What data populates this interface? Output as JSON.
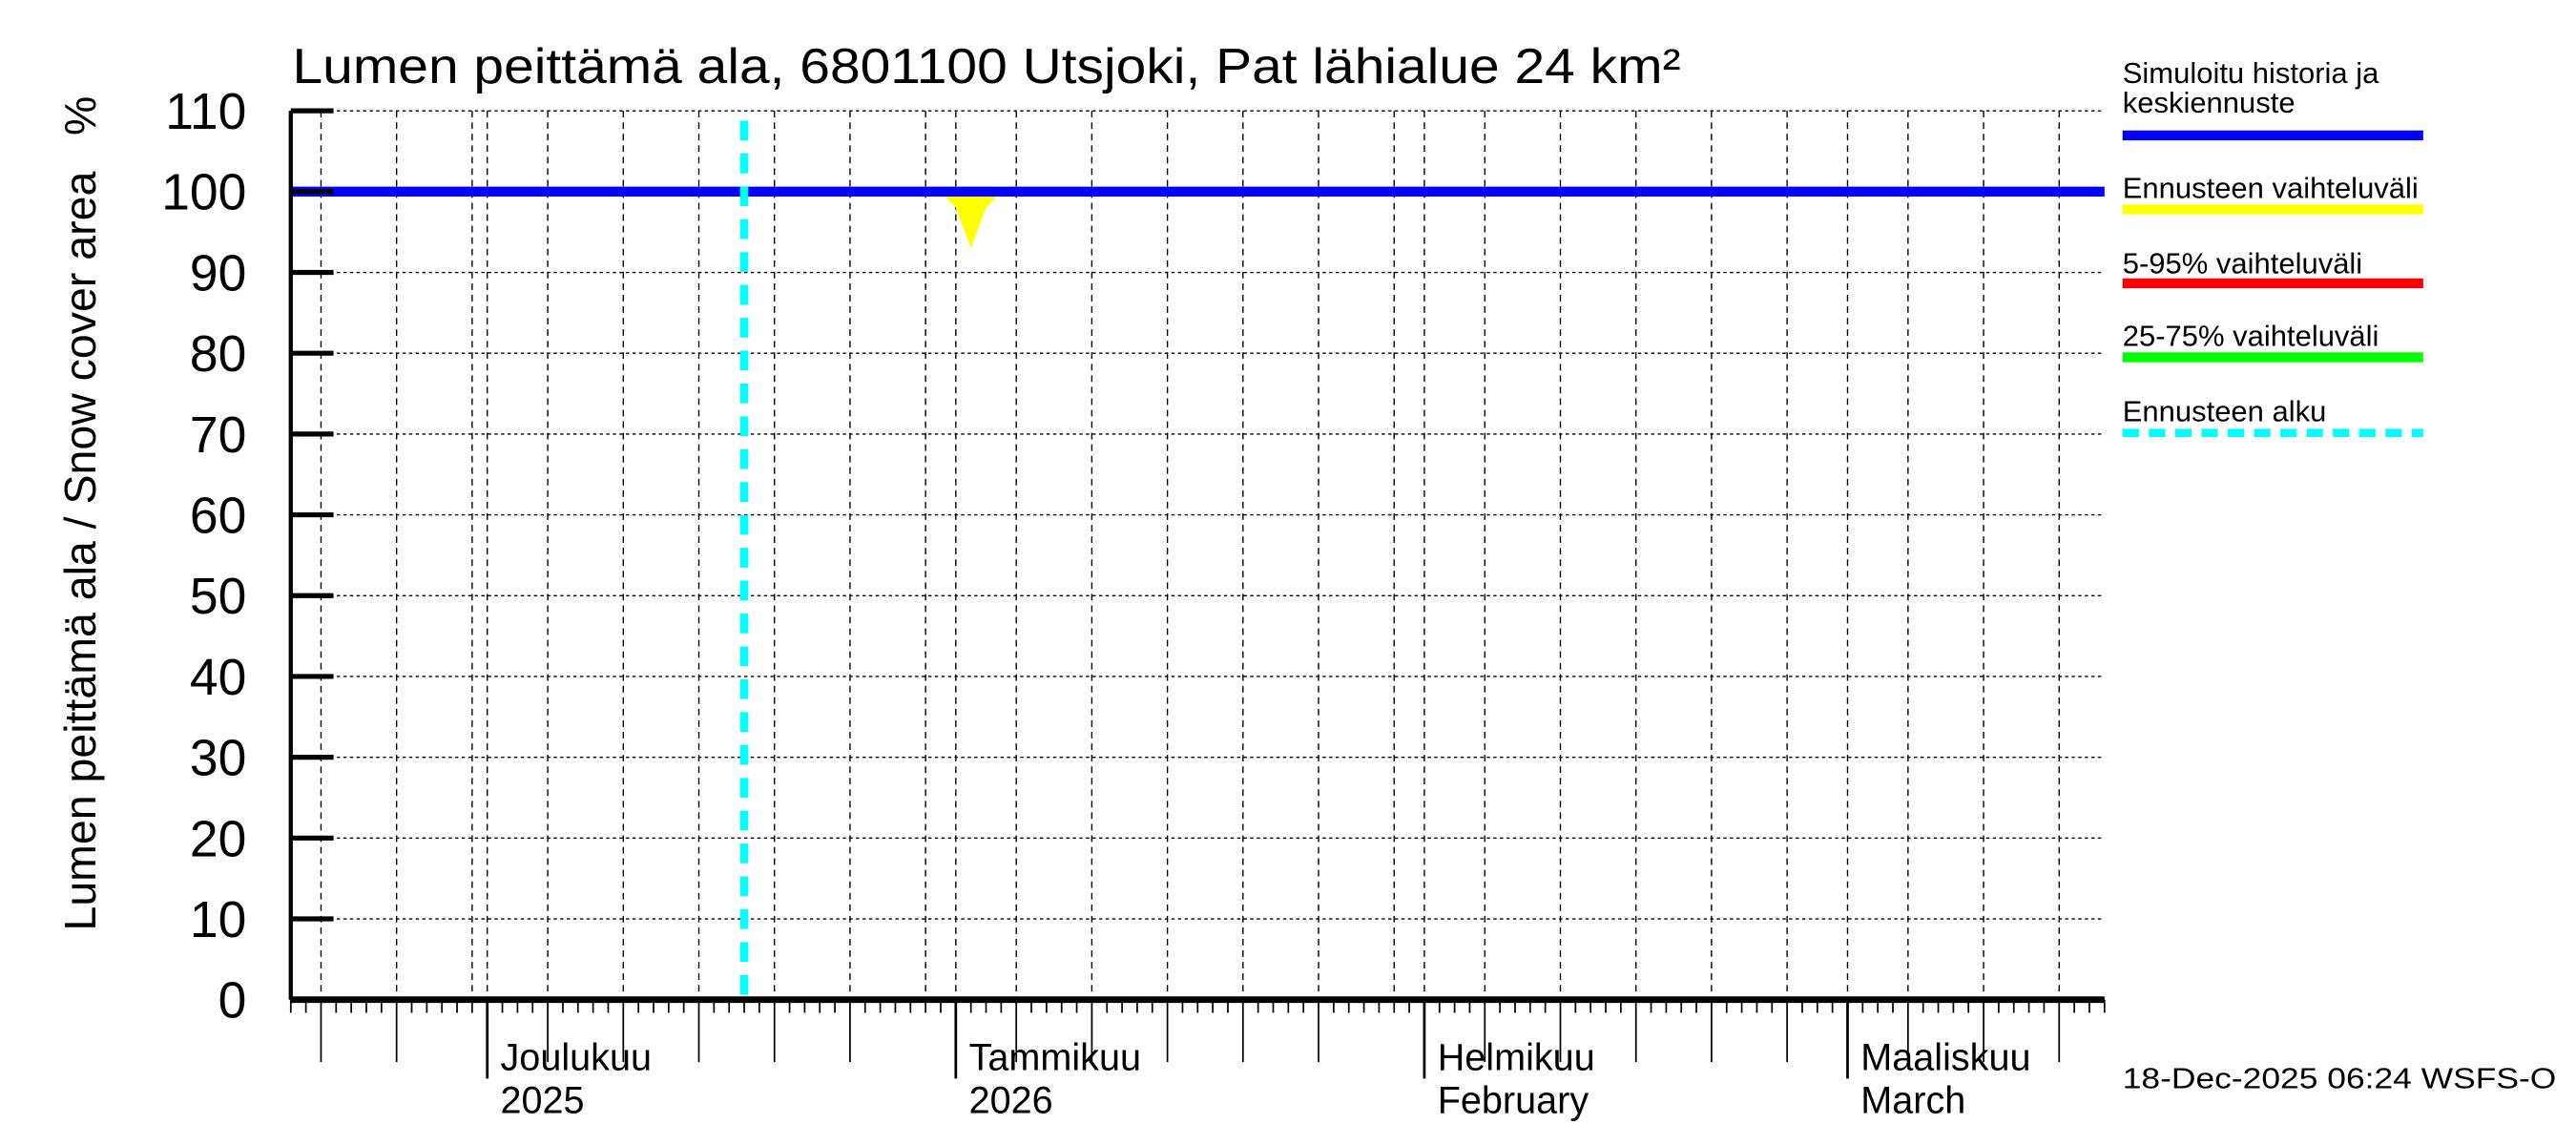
{
  "chart_data": {
    "type": "line",
    "title": "Lumen peittämä ala, 6801100 Utsjoki, Pat lähialue 24 km²",
    "ylabel": "Lumen peittämä ala / Snow cover area",
    "yunit": "%",
    "ylim": [
      0,
      110
    ],
    "yticks": [
      0,
      10,
      20,
      30,
      40,
      50,
      60,
      70,
      80,
      90,
      100,
      110
    ],
    "xlim": [
      "2025-11-18",
      "2026-03-18"
    ],
    "forecast_start": "2025-12-18",
    "grid": true,
    "month_labels": [
      {
        "date": "2025-12-01",
        "line1": "Joulukuu",
        "line2": "2025"
      },
      {
        "date": "2026-01-01",
        "line1": "Tammikuu",
        "line2": "2026"
      },
      {
        "date": "2026-02-01",
        "line1": "Helmikuu",
        "line2": "February"
      },
      {
        "date": "2026-03-01",
        "line1": "Maaliskuu",
        "line2": "March"
      }
    ],
    "series": [
      {
        "name": "Simuloitu historia ja keskiennuste",
        "color": "#0000ff",
        "points": [
          [
            "2025-11-18",
            100
          ],
          [
            "2026-03-18",
            100
          ]
        ]
      },
      {
        "name": "Ennusteen vaihteluväli",
        "color": "#ffff00",
        "type": "band_min",
        "points": [
          [
            "2025-12-24",
            100
          ],
          [
            "2025-12-25",
            99.5
          ],
          [
            "2025-12-26",
            100
          ],
          [
            "2025-12-31",
            100
          ],
          [
            "2026-01-01",
            98
          ],
          [
            "2026-01-02",
            93
          ],
          [
            "2026-01-03",
            98
          ],
          [
            "2026-01-04",
            100
          ]
        ]
      }
    ],
    "legend": {
      "placement": "right",
      "items": [
        {
          "label": "Simuloitu historia ja",
          "label2": "keskiennuste",
          "color": "#0000ff",
          "style": "solid"
        },
        {
          "label": "Ennusteen vaihteluväli",
          "color": "#ffff00",
          "style": "solid"
        },
        {
          "label": "5-95% vaihteluväli",
          "color": "#ff0000",
          "style": "solid"
        },
        {
          "label": "25-75% vaihteluväli",
          "color": "#00ff00",
          "style": "solid"
        },
        {
          "label": "Ennusteen alku",
          "color": "#00ffff",
          "style": "dashed"
        }
      ]
    },
    "footer": "18-Dec-2025 06:24 WSFS-O"
  }
}
